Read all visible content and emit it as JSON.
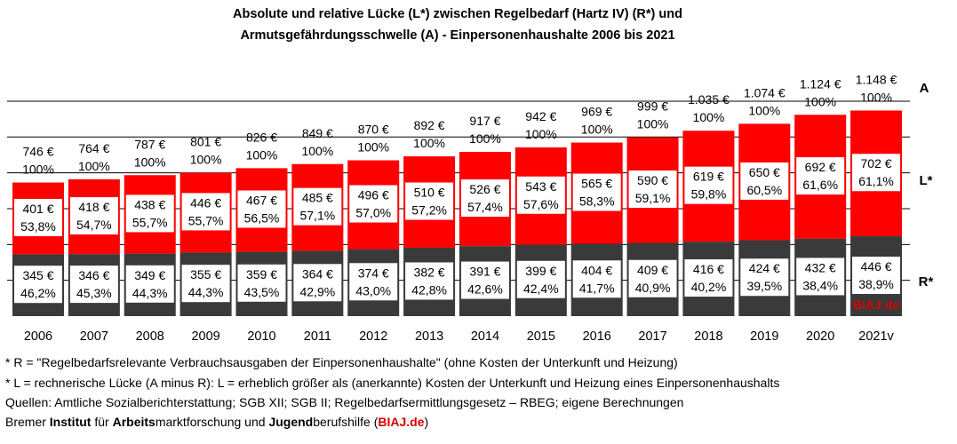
{
  "chart_data": {
    "type": "bar",
    "title_line1": "Absolute und relative Lücke (L*) zwischen Regelbedarf (Hartz IV) (R*) und",
    "title_line2": "Armutsgefährdungsschwelle  (A) -  Einpersonenhaushalte  2006 bis 2021",
    "categories": [
      "2006",
      "2007",
      "2008",
      "2009",
      "2010",
      "2011",
      "2012",
      "2013",
      "2014",
      "2015",
      "2016",
      "2017",
      "2018",
      "2019",
      "2020",
      "2021v"
    ],
    "series": [
      {
        "name": "R*",
        "values": [
          345,
          346,
          349,
          355,
          359,
          364,
          374,
          382,
          391,
          399,
          404,
          409,
          416,
          424,
          432,
          446
        ],
        "pct_labels": [
          "46,2%",
          "45,3%",
          "44,3%",
          "44,3%",
          "43,5%",
          "42,9%",
          "43,0%",
          "42,8%",
          "42,6%",
          "42,4%",
          "41,7%",
          "40,9%",
          "40,2%",
          "39,5%",
          "38,4%",
          "38,9%"
        ]
      },
      {
        "name": "L*",
        "values": [
          401,
          418,
          438,
          446,
          467,
          485,
          496,
          510,
          526,
          543,
          565,
          590,
          619,
          650,
          692,
          702
        ],
        "pct_labels": [
          "53,8%",
          "54,7%",
          "55,7%",
          "55,7%",
          "56,5%",
          "57,1%",
          "57,0%",
          "57,2%",
          "57,4%",
          "57,6%",
          "58,3%",
          "59,1%",
          "59,8%",
          "60,5%",
          "61,6%",
          "61,1%"
        ]
      },
      {
        "name": "A",
        "values": [
          746,
          764,
          787,
          801,
          826,
          849,
          870,
          892,
          917,
          942,
          969,
          999,
          1035,
          1074,
          1124,
          1148
        ],
        "pct_labels": [
          "100%",
          "100%",
          "100%",
          "100%",
          "100%",
          "100%",
          "100%",
          "100%",
          "100%",
          "100%",
          "100%",
          "100%",
          "100%",
          "100%",
          "100%",
          "100%"
        ]
      }
    ],
    "value_labels": {
      "R": [
        "345 €",
        "346 €",
        "349 €",
        "355 €",
        "359 €",
        "364 €",
        "374 €",
        "382 €",
        "391 €",
        "399 €",
        "404 €",
        "409 €",
        "416 €",
        "424 €",
        "432 €",
        "446 €"
      ],
      "L": [
        "401 €",
        "418 €",
        "438 €",
        "446 €",
        "467 €",
        "485 €",
        "496 €",
        "510 €",
        "526 €",
        "543 €",
        "565 €",
        "590 €",
        "619 €",
        "650 €",
        "692 €",
        "702 €"
      ],
      "A": [
        "746 €",
        "764 €",
        "787 €",
        "801 €",
        "826 €",
        "849 €",
        "870 €",
        "892 €",
        "917 €",
        "942 €",
        "969 €",
        "999 €",
        "1.035 €",
        "1.074 €",
        "1.124 €",
        "1.148 €"
      ]
    },
    "side_labels": {
      "A": "A",
      "L": "L*",
      "R": "R*"
    },
    "watermark": "BIAJ.de",
    "ylim": [
      0,
      1200
    ],
    "grid": true
  },
  "colors": {
    "R": "#3a3a3a",
    "L": "#ff0000",
    "brand": "#d50000"
  },
  "footnotes": {
    "fn1": "* R = \"Regelbedarfsrelevante  Verbrauchsausgaben  der Einpersonenhaushalte\"  (ohne Kosten der Unterkunft  und Heizung)",
    "fn2": "* L = rechnerische Lücke  (A minus  R): L = erheblich größer als  (anerkannte)  Kosten der Unterkunft  und Heizung eines  Einpersonenhaushalts",
    "fn3": "Quellen:  Amtliche Sozialberichterstattung;  SGB XII; SGB II; Regelbedarfsermittlungsgesetz  – RBEG;  eigene Berechnungen",
    "fn4": {
      "t1": "Bremer ",
      "b1": "Institut",
      " t2": "",
      "t2": " für ",
      "b2": "Arbeits",
      "t3": "marktforschung  und ",
      "b3": "Jugend",
      "t4": "berufshilfe  (",
      "brand": "BIAJ.de",
      "t5": ")"
    }
  }
}
